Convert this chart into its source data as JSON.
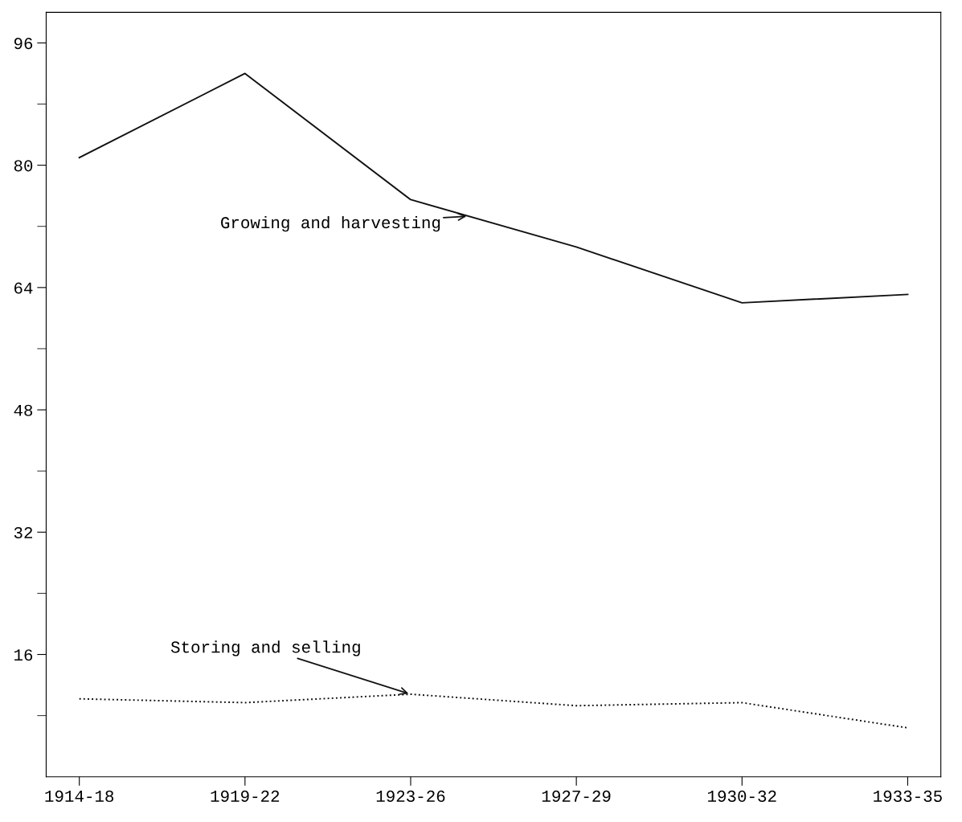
{
  "chart_data": {
    "type": "line",
    "categories": [
      "1914-18",
      "1919-22",
      "1923-26",
      "1927-29",
      "1930-32",
      "1933-35"
    ],
    "ylim": [
      0,
      100
    ],
    "yticks": [
      16,
      32,
      48,
      64,
      80,
      96
    ],
    "series": [
      {
        "color": "#111111",
        "line_style": "solid",
        "values": [
          81,
          92,
          75.5,
          69.3,
          62,
          63.1
        ]
      },
      {
        "color": "#111111",
        "line_style": "dotted",
        "values": [
          10.2,
          9.7,
          10.8,
          9.3,
          9.7,
          6.4
        ]
      }
    ],
    "annotations": [
      "Growing and harvesting",
      {
        "text": "Storing and selling",
        "x": "1923-26",
        "y": 10.8
      }
    ],
    "grid": false,
    "legend": false,
    "marker": "none"
  }
}
